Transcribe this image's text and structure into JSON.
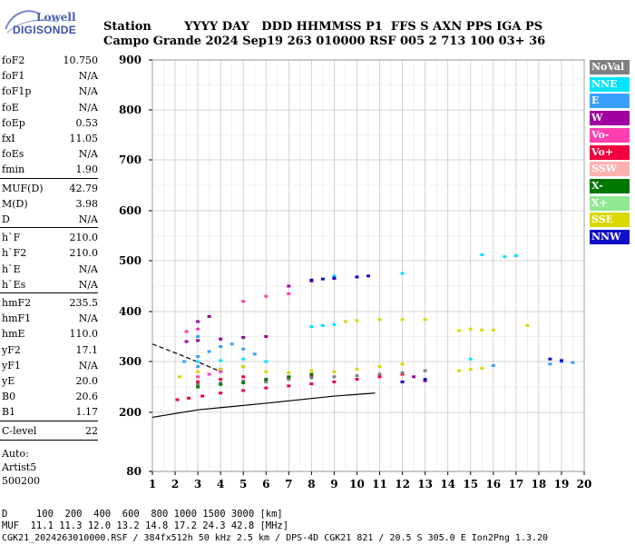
{
  "logo": {
    "line1": "Lowell",
    "line2": "DIGISONDE"
  },
  "header": {
    "row1": "Station        YYYY DAY   DDD HHMMSS P1  FFS S AXN PPS IGA PS",
    "row2": "Campo Grande 2024 Sep19 263 010000 RSF 005 2 713 100 03+ 36"
  },
  "params_group1": [
    {
      "k": "foF2",
      "v": "10.750"
    },
    {
      "k": "foF1",
      "v": "N/A"
    },
    {
      "k": "foF1p",
      "v": "N/A"
    },
    {
      "k": "foE",
      "v": "N/A"
    },
    {
      "k": "foEp",
      "v": "0.53"
    },
    {
      "k": "fxI",
      "v": "11.05"
    },
    {
      "k": "foEs",
      "v": "N/A"
    },
    {
      "k": "fmin",
      "v": "1.90"
    }
  ],
  "params_group2": [
    {
      "k": "MUF(D)",
      "v": "42.79"
    },
    {
      "k": "M(D)",
      "v": "3.98"
    },
    {
      "k": "D",
      "v": "N/A"
    }
  ],
  "params_group3": [
    {
      "k": "h`F",
      "v": "210.0"
    },
    {
      "k": "h`F2",
      "v": "210.0"
    },
    {
      "k": "h`E",
      "v": "N/A"
    },
    {
      "k": "h`Es",
      "v": "N/A"
    }
  ],
  "params_group4": [
    {
      "k": "hmF2",
      "v": "235.5"
    },
    {
      "k": "hmF1",
      "v": "N/A"
    },
    {
      "k": "hmE",
      "v": "110.0"
    },
    {
      "k": "yF2",
      "v": "17.1"
    },
    {
      "k": "yF1",
      "v": "N/A"
    },
    {
      "k": "yE",
      "v": "20.0"
    },
    {
      "k": "B0",
      "v": "20.6"
    },
    {
      "k": "B1",
      "v": "1.17"
    }
  ],
  "clevel": {
    "k": "C-level",
    "v": "22"
  },
  "auto": {
    "line1": "Auto:",
    "line2": "Artist5",
    "line3": "500200"
  },
  "legend": [
    {
      "label": "NoVal",
      "color": "#808080"
    },
    {
      "label": "NNE",
      "color": "#00e5ff"
    },
    {
      "label": "E",
      "color": "#3aa0ff"
    },
    {
      "label": "W",
      "color": "#a000a0"
    },
    {
      "label": "Vo-",
      "color": "#ff3fb0"
    },
    {
      "label": "Vo+",
      "color": "#f0003c"
    },
    {
      "label": "SSW",
      "color": "#ffb0b0"
    },
    {
      "label": "X-",
      "color": "#007800"
    },
    {
      "label": "X+",
      "color": "#90e890"
    },
    {
      "label": "SSE",
      "color": "#d8d800"
    },
    {
      "label": "NNW",
      "color": "#1010c8"
    }
  ],
  "bottom": {
    "line1": "D     100  200  400  600  800 1000 1500 3000 [km]",
    "line2": "MUF  11.1 11.3 12.0 13.2 14.8 17.2 24.3 42.8 [MHz]",
    "line3": "CGK21_2024263010000.RSF / 384fx512h 50 kHz 2.5 km / DPS-4D CGK21 821 / 20.5 S 305.0 E Ion2Png 1.3.20"
  },
  "chart_data": {
    "type": "scatter",
    "xlim": [
      1,
      20
    ],
    "ylim": [
      80,
      900
    ],
    "x_ticks": [
      1,
      2,
      3,
      4,
      5,
      6,
      7,
      8,
      9,
      10,
      11,
      12,
      13,
      14,
      15,
      16,
      17,
      18,
      19,
      20
    ],
    "y_ticks": [
      80,
      200,
      300,
      400,
      500,
      600,
      700,
      800,
      900
    ],
    "xlabel": "",
    "ylabel": "",
    "grid": true,
    "legend_position": "right",
    "series": [
      {
        "color_key": "Vo+",
        "values": [
          [
            2.1,
            225
          ],
          [
            2.6,
            228
          ],
          [
            3.2,
            232
          ],
          [
            4,
            238
          ],
          [
            5,
            243
          ],
          [
            6,
            248
          ],
          [
            7,
            252
          ],
          [
            8,
            256
          ],
          [
            9,
            260
          ],
          [
            10,
            265
          ],
          [
            11,
            270
          ],
          [
            12,
            275
          ],
          [
            3,
            260
          ],
          [
            4,
            265
          ],
          [
            5,
            270
          ],
          [
            6,
            262
          ],
          [
            7,
            268
          ],
          [
            8,
            272
          ]
        ]
      },
      {
        "color_key": "E",
        "values": [
          [
            2.4,
            300
          ],
          [
            3,
            310
          ],
          [
            3.5,
            320
          ],
          [
            4,
            330
          ],
          [
            4.5,
            335
          ],
          [
            5,
            325
          ],
          [
            5.5,
            315
          ],
          [
            3,
            290
          ],
          [
            4,
            285
          ],
          [
            5,
            290
          ],
          [
            18.5,
            295
          ],
          [
            19,
            300
          ],
          [
            19.5,
            298
          ],
          [
            16,
            292
          ],
          [
            3,
            350
          ],
          [
            4,
            345
          ],
          [
            5,
            348
          ]
        ]
      },
      {
        "color_key": "SSE",
        "values": [
          [
            2.2,
            270
          ],
          [
            3,
            280
          ],
          [
            4,
            285
          ],
          [
            5,
            290
          ],
          [
            6,
            280
          ],
          [
            7,
            278
          ],
          [
            8,
            282
          ],
          [
            9,
            280
          ],
          [
            10,
            285
          ],
          [
            11,
            290
          ],
          [
            12,
            295
          ],
          [
            9.5,
            380
          ],
          [
            10,
            382
          ],
          [
            11,
            384
          ],
          [
            12,
            384
          ],
          [
            13,
            384
          ],
          [
            14.5,
            362
          ],
          [
            15,
            365
          ],
          [
            15.5,
            363
          ],
          [
            16,
            363
          ],
          [
            14.5,
            282
          ],
          [
            15,
            285
          ],
          [
            15.5,
            287
          ],
          [
            17.5,
            372
          ]
        ]
      },
      {
        "color_key": "NNE",
        "values": [
          [
            3,
            300
          ],
          [
            4,
            302
          ],
          [
            5,
            305
          ],
          [
            6,
            300
          ],
          [
            8,
            370
          ],
          [
            8.5,
            372
          ],
          [
            9,
            374
          ],
          [
            9,
            470
          ],
          [
            12,
            475
          ],
          [
            15.5,
            512
          ],
          [
            16.5,
            508
          ],
          [
            17,
            510
          ],
          [
            15,
            305
          ]
        ]
      },
      {
        "color_key": "W",
        "values": [
          [
            2.5,
            340
          ],
          [
            3,
            342
          ],
          [
            4,
            345
          ],
          [
            5,
            348
          ],
          [
            6,
            350
          ],
          [
            3,
            380
          ],
          [
            3.5,
            390
          ],
          [
            7,
            450
          ],
          [
            8,
            460
          ],
          [
            9,
            465
          ],
          [
            10,
            468
          ],
          [
            12.5,
            270
          ],
          [
            13,
            262
          ],
          [
            12,
            260
          ]
        ]
      },
      {
        "color_key": "NNW",
        "values": [
          [
            8,
            462
          ],
          [
            8.5,
            464
          ],
          [
            9,
            466
          ],
          [
            10,
            468
          ],
          [
            10.5,
            470
          ],
          [
            12,
            260
          ],
          [
            13,
            265
          ],
          [
            18.5,
            305
          ],
          [
            19,
            302
          ]
        ]
      },
      {
        "color_key": "NoVal",
        "values": [
          [
            3,
            255
          ],
          [
            4,
            258
          ],
          [
            5,
            262
          ],
          [
            6,
            260
          ],
          [
            7,
            265
          ],
          [
            8,
            268
          ],
          [
            9,
            270
          ],
          [
            10,
            272
          ],
          [
            11,
            275
          ],
          [
            12,
            278
          ],
          [
            13,
            282
          ]
        ]
      },
      {
        "color_key": "X-",
        "values": [
          [
            3,
            250
          ],
          [
            4,
            255
          ],
          [
            5,
            258
          ],
          [
            6,
            265
          ],
          [
            7,
            270
          ],
          [
            8,
            275
          ]
        ]
      },
      {
        "color_key": "Vo-",
        "values": [
          [
            3,
            270
          ],
          [
            3.5,
            275
          ],
          [
            4,
            280
          ],
          [
            2.5,
            360
          ],
          [
            3,
            365
          ],
          [
            5,
            420
          ],
          [
            6,
            430
          ],
          [
            7,
            435
          ]
        ]
      }
    ]
  }
}
